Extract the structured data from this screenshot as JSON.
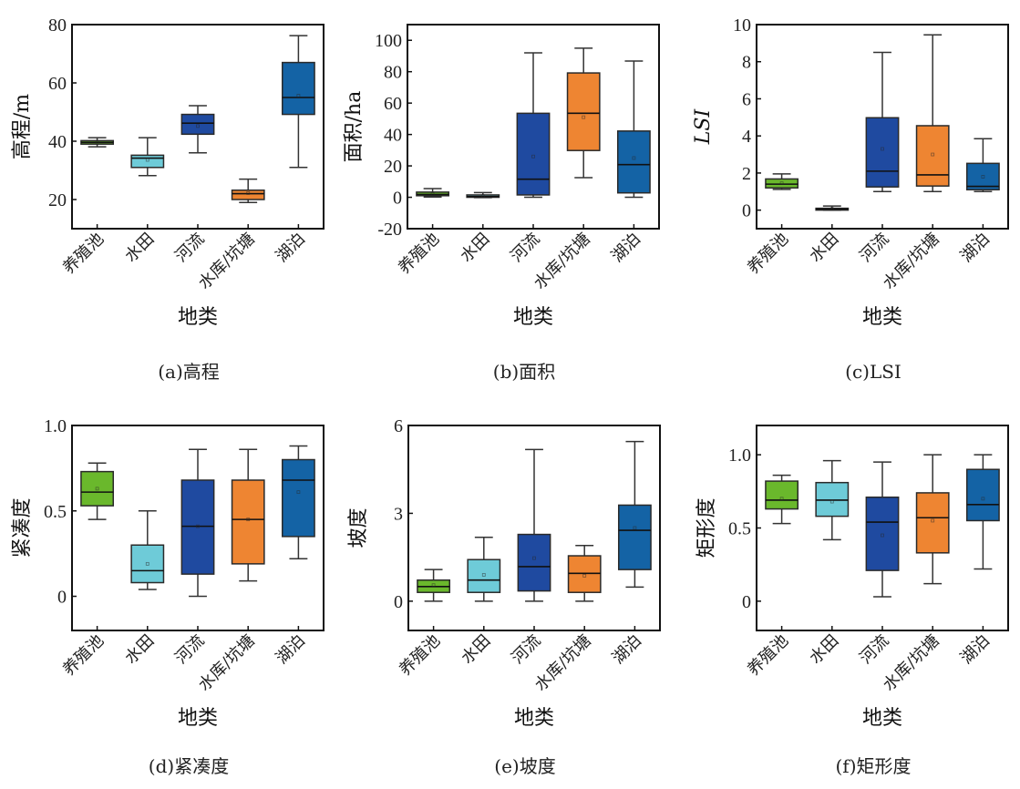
{
  "figure": {
    "categories": [
      "养殖池",
      "水田",
      "河流",
      "水库/坑塘",
      "湖泊"
    ],
    "category_colors": [
      "#6ab82c",
      "#6ecbd8",
      "#1f4aa0",
      "#ee8532",
      "#1463a5"
    ],
    "xlabel": "地类"
  },
  "chart_data": [
    {
      "type": "box",
      "id": "a",
      "caption": "(a)高程",
      "title": "",
      "xlabel": "地类",
      "ylabel": "高程/m",
      "ylabel_italic": false,
      "ylim": [
        10,
        80
      ],
      "yticks": [
        20,
        40,
        60,
        80
      ],
      "ytick_labels": [
        "20",
        "40",
        "60",
        "80"
      ],
      "grid": false,
      "categories": [
        "养殖池",
        "水田",
        "河流",
        "水库/坑塘",
        "湖泊"
      ],
      "boxes": [
        {
          "whisker_low": 38.1,
          "q1": 39.0,
          "median": 39.6,
          "q3": 40.2,
          "whisker_high": 41.2,
          "mean": 39.6
        },
        {
          "whisker_low": 28.2,
          "q1": 31.0,
          "median": 34.2,
          "q3": 35.2,
          "whisker_high": 41.2,
          "mean": 33.6
        },
        {
          "whisker_low": 36.0,
          "q1": 42.4,
          "median": 46.2,
          "q3": 49.2,
          "whisker_high": 52.2,
          "mean": 45.2
        },
        {
          "whisker_low": 19.0,
          "q1": 20.0,
          "median": 22.0,
          "q3": 23.2,
          "whisker_high": 27.0,
          "mean": 22.2
        },
        {
          "whisker_low": 31.0,
          "q1": 49.2,
          "median": 55.0,
          "q3": 67.0,
          "whisker_high": 76.2,
          "mean": 55.6
        }
      ]
    },
    {
      "type": "box",
      "id": "b",
      "caption": "(b)面积",
      "title": "",
      "xlabel": "地类",
      "ylabel": "面积/ha",
      "ylabel_italic": false,
      "ylim": [
        -20,
        110
      ],
      "yticks": [
        -20,
        0,
        20,
        40,
        60,
        80,
        100
      ],
      "ytick_labels": [
        "-20",
        "0",
        "20",
        "40",
        "60",
        "80",
        "100"
      ],
      "grid": false,
      "categories": [
        "养殖池",
        "水田",
        "河流",
        "水库/坑塘",
        "湖泊"
      ],
      "boxes": [
        {
          "whisker_low": 0.2,
          "q1": 1.0,
          "median": 1.8,
          "q3": 3.3,
          "whisker_high": 5.5,
          "mean": 2.0
        },
        {
          "whisker_low": -0.2,
          "q1": 0.0,
          "median": 0.5,
          "q3": 1.5,
          "whisker_high": 3.0,
          "mean": 0.8
        },
        {
          "whisker_low": 0.0,
          "q1": 1.5,
          "median": 11.5,
          "q3": 53.5,
          "whisker_high": 92.0,
          "mean": 26.0
        },
        {
          "whisker_low": 12.5,
          "q1": 29.8,
          "median": 53.5,
          "q3": 79.2,
          "whisker_high": 95.0,
          "mean": 51.0
        },
        {
          "whisker_low": 0.0,
          "q1": 2.8,
          "median": 20.8,
          "q3": 42.2,
          "whisker_high": 86.8,
          "mean": 25.0
        }
      ]
    },
    {
      "type": "box",
      "id": "c",
      "caption": "(c)LSI",
      "title": "",
      "xlabel": "地类",
      "ylabel": "LSI",
      "ylabel_italic": true,
      "ylim": [
        -1,
        10
      ],
      "yticks": [
        0,
        2,
        4,
        6,
        8,
        10
      ],
      "ytick_labels": [
        "0",
        "2",
        "4",
        "6",
        "8",
        "10"
      ],
      "grid": false,
      "categories": [
        "养殖池",
        "水田",
        "河流",
        "水库/坑塘",
        "湖泊"
      ],
      "boxes": [
        {
          "whisker_low": 1.12,
          "q1": 1.2,
          "median": 1.4,
          "q3": 1.68,
          "whisker_high": 1.95,
          "mean": 1.45
        },
        {
          "whisker_low": 0.0,
          "q1": 0.02,
          "median": 0.06,
          "q3": 0.1,
          "whisker_high": 0.22,
          "mean": 0.07
        },
        {
          "whisker_low": 1.0,
          "q1": 1.25,
          "median": 2.1,
          "q3": 4.98,
          "whisker_high": 8.5,
          "mean": 3.3
        },
        {
          "whisker_low": 1.0,
          "q1": 1.3,
          "median": 1.9,
          "q3": 4.55,
          "whisker_high": 9.45,
          "mean": 3.0
        },
        {
          "whisker_low": 1.0,
          "q1": 1.1,
          "median": 1.28,
          "q3": 2.52,
          "whisker_high": 3.85,
          "mean": 1.8
        }
      ]
    },
    {
      "type": "box",
      "id": "d",
      "caption": "(d)紧凑度",
      "title": "",
      "xlabel": "地类",
      "ylabel": "紧凑度",
      "ylabel_italic": false,
      "ylim": [
        -0.2,
        1.0
      ],
      "yticks": [
        0,
        0.5,
        1.0
      ],
      "ytick_labels": [
        "0",
        "0.5",
        "1.0"
      ],
      "grid": false,
      "categories": [
        "养殖池",
        "水田",
        "河流",
        "水库/坑塘",
        "湖泊"
      ],
      "boxes": [
        {
          "whisker_low": 0.45,
          "q1": 0.53,
          "median": 0.61,
          "q3": 0.73,
          "whisker_high": 0.78,
          "mean": 0.63
        },
        {
          "whisker_low": 0.04,
          "q1": 0.08,
          "median": 0.15,
          "q3": 0.3,
          "whisker_high": 0.5,
          "mean": 0.19
        },
        {
          "whisker_low": 0.0,
          "q1": 0.13,
          "median": 0.41,
          "q3": 0.68,
          "whisker_high": 0.86,
          "mean": 0.41
        },
        {
          "whisker_low": 0.09,
          "q1": 0.19,
          "median": 0.45,
          "q3": 0.68,
          "whisker_high": 0.86,
          "mean": 0.45
        },
        {
          "whisker_low": 0.22,
          "q1": 0.35,
          "median": 0.68,
          "q3": 0.8,
          "whisker_high": 0.88,
          "mean": 0.61
        }
      ]
    },
    {
      "type": "box",
      "id": "e",
      "caption": "(e)坡度",
      "title": "",
      "xlabel": "地类",
      "ylabel": "坡度",
      "ylabel_italic": false,
      "ylim": [
        -1,
        6
      ],
      "yticks": [
        0,
        3,
        6
      ],
      "ytick_labels": [
        "0",
        "3",
        "6"
      ],
      "grid": false,
      "categories": [
        "养殖池",
        "水田",
        "河流",
        "水库/坑塘",
        "湖泊"
      ],
      "boxes": [
        {
          "whisker_low": 0.0,
          "q1": 0.3,
          "median": 0.5,
          "q3": 0.72,
          "whisker_high": 1.08,
          "mean": 0.55
        },
        {
          "whisker_low": 0.0,
          "q1": 0.3,
          "median": 0.72,
          "q3": 1.42,
          "whisker_high": 2.18,
          "mean": 0.9
        },
        {
          "whisker_low": 0.0,
          "q1": 0.35,
          "median": 1.18,
          "q3": 2.28,
          "whisker_high": 5.18,
          "mean": 1.47
        },
        {
          "whisker_low": 0.0,
          "q1": 0.3,
          "median": 0.95,
          "q3": 1.55,
          "whisker_high": 1.9,
          "mean": 0.87
        },
        {
          "whisker_low": 0.48,
          "q1": 1.08,
          "median": 2.42,
          "q3": 3.28,
          "whisker_high": 5.45,
          "mean": 2.5
        }
      ]
    },
    {
      "type": "box",
      "id": "f",
      "caption": "(f)矩形度",
      "title": "",
      "xlabel": "地类",
      "ylabel": "矩形度",
      "ylabel_italic": false,
      "ylim": [
        -0.2,
        1.2
      ],
      "yticks": [
        0,
        0.5,
        1.0
      ],
      "ytick_labels": [
        "0",
        "0.5",
        "1.0"
      ],
      "grid": false,
      "categories": [
        "养殖池",
        "水田",
        "河流",
        "水库/坑塘",
        "湖泊"
      ],
      "boxes": [
        {
          "whisker_low": 0.53,
          "q1": 0.63,
          "median": 0.69,
          "q3": 0.82,
          "whisker_high": 0.86,
          "mean": 0.7
        },
        {
          "whisker_low": 0.42,
          "q1": 0.58,
          "median": 0.69,
          "q3": 0.81,
          "whisker_high": 0.96,
          "mean": 0.68
        },
        {
          "whisker_low": 0.03,
          "q1": 0.21,
          "median": 0.54,
          "q3": 0.71,
          "whisker_high": 0.95,
          "mean": 0.45
        },
        {
          "whisker_low": 0.12,
          "q1": 0.33,
          "median": 0.57,
          "q3": 0.74,
          "whisker_high": 1.0,
          "mean": 0.55
        },
        {
          "whisker_low": 0.22,
          "q1": 0.55,
          "median": 0.66,
          "q3": 0.9,
          "whisker_high": 1.0,
          "mean": 0.7
        }
      ]
    }
  ]
}
